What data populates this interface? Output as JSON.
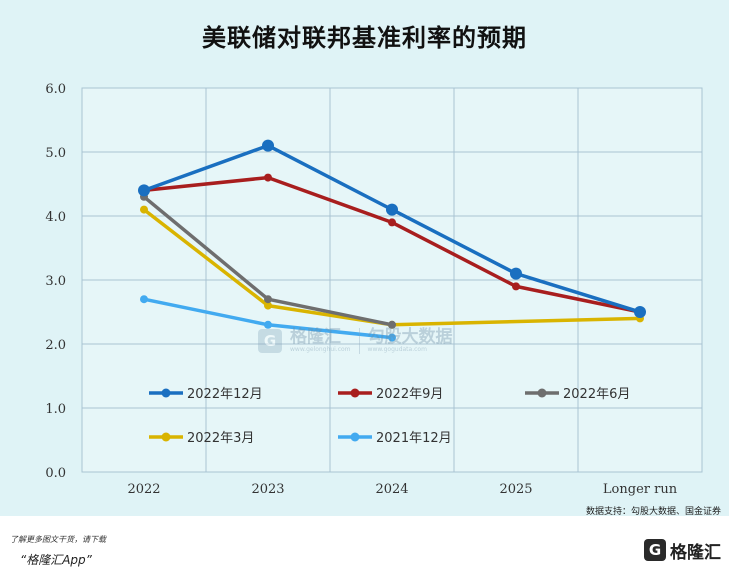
{
  "title": "美联储对联邦基准利率的预期",
  "source": "数据支持：勾股大数据、国金证券",
  "footer": {
    "note": "了解更多图文干货，请下载",
    "app": "“格隆汇App”",
    "logo_text": "格隆汇"
  },
  "watermark": {
    "left": "格隆汇",
    "left_sub": "www.gelonghui.com",
    "right": "勾股大数据",
    "right_sub": "www.gogudata.com"
  },
  "chart_data": {
    "type": "line",
    "categories": [
      "2022",
      "2023",
      "2024",
      "2025",
      "Longer run"
    ],
    "ylim": [
      0,
      6
    ],
    "yticks": [
      "0.0",
      "1.0",
      "2.0",
      "3.0",
      "4.0",
      "5.0",
      "6.0"
    ],
    "grid": true,
    "legend_position": "inside-bottom",
    "series": [
      {
        "name": "2022年12月",
        "color": "#1a6fc0",
        "values": [
          4.4,
          5.1,
          4.1,
          3.1,
          2.5
        ]
      },
      {
        "name": "2022年9月",
        "color": "#a81e1e",
        "values": [
          4.4,
          4.6,
          3.9,
          2.9,
          2.5
        ]
      },
      {
        "name": "2022年6月",
        "color": "#6e6e6e",
        "values": [
          4.3,
          2.7,
          2.3,
          null,
          null
        ]
      },
      {
        "name": "2022年3月",
        "color": "#d9b400",
        "values": [
          4.1,
          2.6,
          2.3,
          null,
          2.4
        ]
      },
      {
        "name": "2021年12月",
        "color": "#42aaf0",
        "values": [
          2.7,
          2.3,
          2.1,
          null,
          null
        ]
      }
    ]
  }
}
